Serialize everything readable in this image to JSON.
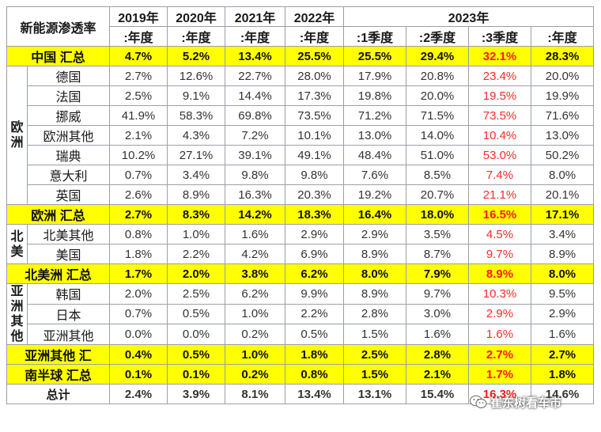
{
  "header": {
    "title": "新能源渗透率",
    "years": [
      "2019年",
      "2020年",
      "2021年",
      "2022年"
    ],
    "year_2023": "2023年",
    "sub": [
      ":年度",
      ":年度",
      ":年度",
      ":年度",
      ":1季度",
      ":2季度",
      ":3季度",
      ":年度"
    ]
  },
  "china": {
    "label": "中国 汇总",
    "values": [
      "4.7%",
      "5.2%",
      "13.4%",
      "25.5%",
      "25.5%",
      "29.4%",
      "32.1%",
      "28.3%"
    ]
  },
  "europe": {
    "region": "欧洲",
    "rows": [
      {
        "name": "德国",
        "values": [
          "2.7%",
          "12.6%",
          "22.7%",
          "28.0%",
          "17.9%",
          "20.8%",
          "23.4%",
          "20.0%"
        ]
      },
      {
        "name": "法国",
        "values": [
          "2.5%",
          "9.1%",
          "14.4%",
          "17.3%",
          "19.8%",
          "20.0%",
          "19.5%",
          "19.9%"
        ]
      },
      {
        "name": "挪威",
        "values": [
          "41.9%",
          "58.3%",
          "69.8%",
          "73.5%",
          "71.2%",
          "71.5%",
          "73.5%",
          "71.6%"
        ]
      },
      {
        "name": "欧洲其他",
        "values": [
          "2.1%",
          "4.3%",
          "7.2%",
          "10.1%",
          "13.0%",
          "14.0%",
          "10.4%",
          "13.0%"
        ]
      },
      {
        "name": "瑞典",
        "values": [
          "10.2%",
          "27.1%",
          "39.1%",
          "49.1%",
          "48.4%",
          "51.0%",
          "53.0%",
          "50.2%"
        ]
      },
      {
        "name": "意大利",
        "values": [
          "0.7%",
          "3.4%",
          "9.8%",
          "9.8%",
          "7.6%",
          "8.5%",
          "7.4%",
          "8.0%"
        ]
      },
      {
        "name": "英国",
        "values": [
          "2.6%",
          "8.9%",
          "16.3%",
          "20.3%",
          "19.2%",
          "20.7%",
          "21.1%",
          "20.1%"
        ]
      }
    ],
    "summary": {
      "label": "欧洲 汇总",
      "values": [
        "2.7%",
        "8.3%",
        "14.2%",
        "18.3%",
        "16.4%",
        "18.0%",
        "16.5%",
        "17.1%"
      ]
    }
  },
  "north_america": {
    "region": "北美",
    "rows": [
      {
        "name": "北美其他",
        "values": [
          "0.8%",
          "1.0%",
          "1.6%",
          "2.9%",
          "2.9%",
          "3.5%",
          "4.5%",
          "3.4%"
        ]
      },
      {
        "name": "美国",
        "values": [
          "1.8%",
          "2.2%",
          "4.2%",
          "6.9%",
          "8.9%",
          "8.7%",
          "9.7%",
          "8.9%"
        ]
      }
    ],
    "summary": {
      "label": "北美洲 汇总",
      "values": [
        "1.7%",
        "2.0%",
        "3.8%",
        "6.2%",
        "8.0%",
        "7.9%",
        "8.9%",
        "8.0%"
      ]
    }
  },
  "asia_other": {
    "region": "亚洲其他",
    "rows": [
      {
        "name": "韩国",
        "values": [
          "2.0%",
          "2.5%",
          "6.2%",
          "9.9%",
          "8.9%",
          "9.7%",
          "10.3%",
          "9.5%"
        ]
      },
      {
        "name": "日本",
        "values": [
          "0.7%",
          "0.5%",
          "1.0%",
          "2.2%",
          "2.8%",
          "3.0%",
          "2.9%",
          "2.9%"
        ]
      },
      {
        "name": "亚洲其他",
        "values": [
          "0.0%",
          "0.0%",
          "0.2%",
          "0.5%",
          "1.5%",
          "1.6%",
          "1.6%",
          "1.6%"
        ]
      }
    ],
    "summary": {
      "label": "亚洲其他 汇",
      "values": [
        "0.4%",
        "0.5%",
        "1.0%",
        "1.8%",
        "2.5%",
        "2.8%",
        "2.7%",
        "2.7%"
      ]
    }
  },
  "southern": {
    "label": "南半球 汇总",
    "values": [
      "0.1%",
      "0.1%",
      "0.2%",
      "0.8%",
      "1.5%",
      "2.1%",
      "1.7%",
      "1.8%"
    ]
  },
  "total": {
    "label": "总计",
    "values": [
      "2.4%",
      "3.9%",
      "8.1%",
      "13.4%",
      "13.1%",
      "15.4%",
      "16.3%",
      "14.6%"
    ]
  },
  "watermark": {
    "text": "崔东树看车市",
    "icon": "wechat-icon"
  },
  "colors": {
    "highlight": "#ffff00",
    "q3_text": "#ff2a2a",
    "border": "#9aa0a6"
  }
}
